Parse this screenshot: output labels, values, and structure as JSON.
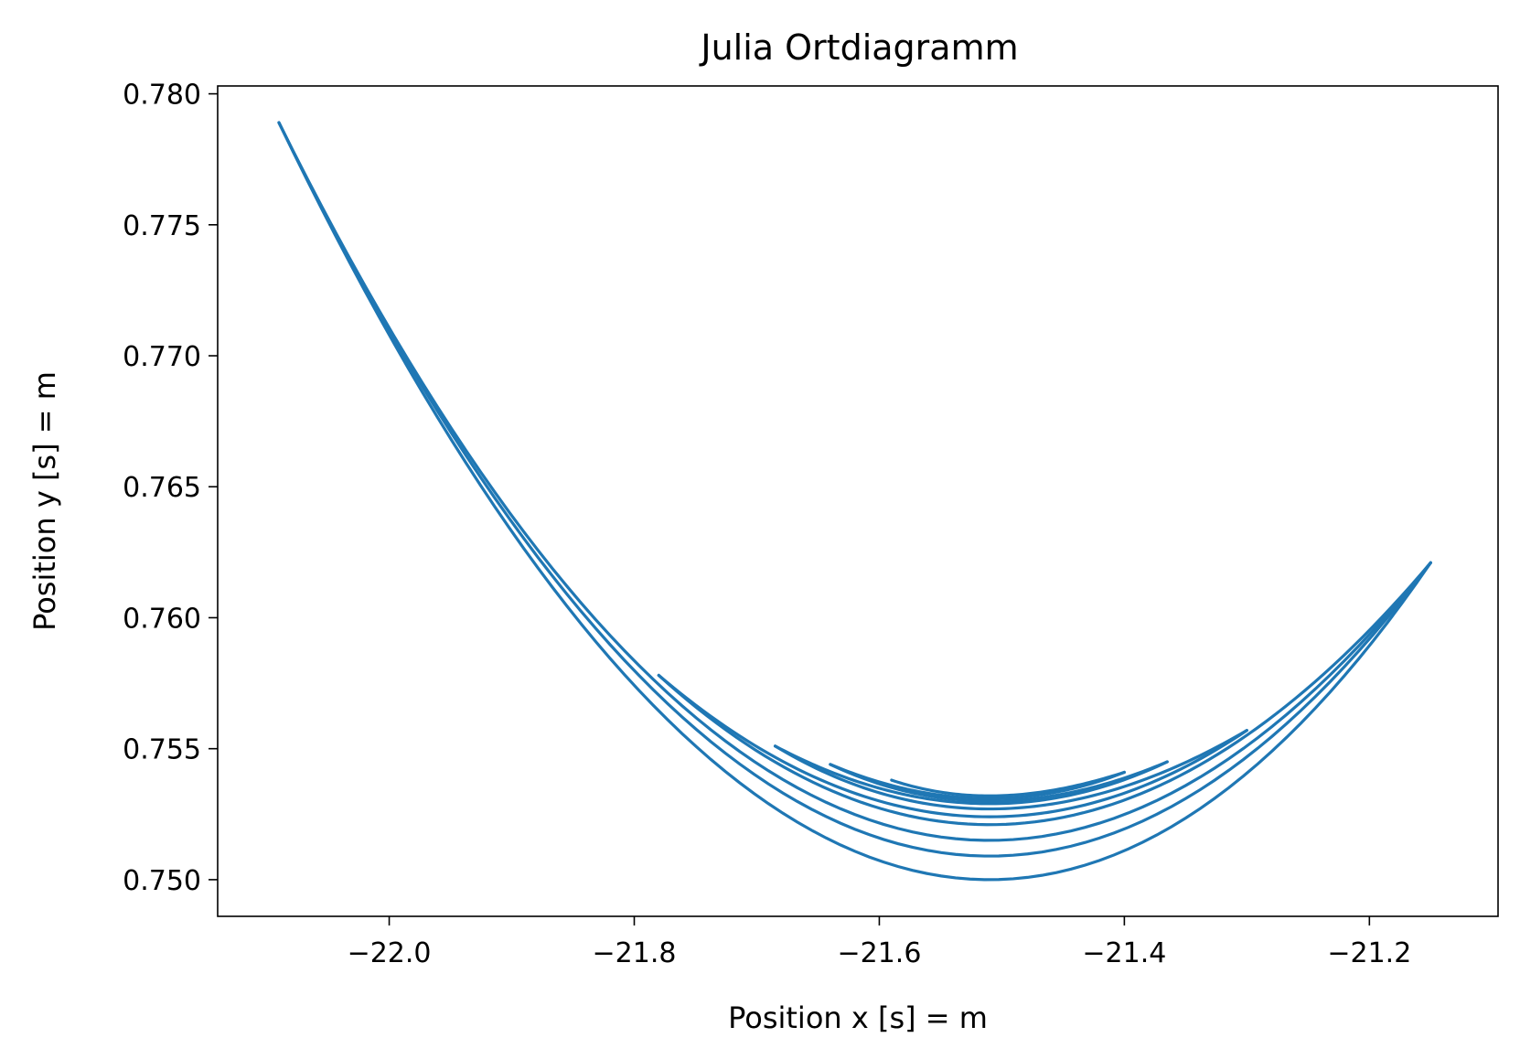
{
  "chart_data": {
    "type": "line",
    "title": "Julia Ortdiagramm",
    "xlabel": "Position x [s] = m",
    "ylabel": "Position y [s] = m",
    "xlim": [
      -22.14,
      -21.095
    ],
    "ylim": [
      0.7486,
      0.7803
    ],
    "xticks": [
      -22.0,
      -21.8,
      -21.6,
      -21.4,
      -21.2
    ],
    "xtick_labels": [
      "−22.0",
      "−21.8",
      "−21.6",
      "−21.4",
      "−21.2"
    ],
    "yticks": [
      0.75,
      0.755,
      0.76,
      0.765,
      0.77,
      0.775,
      0.78
    ],
    "ytick_labels": [
      "0.750",
      "0.755",
      "0.760",
      "0.765",
      "0.770",
      "0.775",
      "0.780"
    ],
    "grid": false,
    "legend": "none",
    "line_color": "#1f77b4",
    "x_min_curve": -21.51,
    "swings": [
      {
        "x_start": -22.09,
        "x_end": -21.15,
        "y_start": 0.7789,
        "y_end": 0.7621,
        "y_min": 0.75
      },
      {
        "x_start": -21.15,
        "x_end": -22.09,
        "y_start": 0.7621,
        "y_end": 0.7789,
        "y_min": 0.7509
      },
      {
        "x_start": -22.09,
        "x_end": -21.15,
        "y_start": 0.7789,
        "y_end": 0.7621,
        "y_min": 0.7515
      },
      {
        "x_start": -21.15,
        "x_end": -21.78,
        "y_start": 0.7621,
        "y_end": 0.7578,
        "y_min": 0.7521
      },
      {
        "x_start": -21.78,
        "x_end": -21.3,
        "y_start": 0.7578,
        "y_end": 0.7557,
        "y_min": 0.7524
      },
      {
        "x_start": -21.3,
        "x_end": -21.685,
        "y_start": 0.7557,
        "y_end": 0.7551,
        "y_min": 0.7527
      },
      {
        "x_start": -21.685,
        "x_end": -21.365,
        "y_start": 0.7551,
        "y_end": 0.7545,
        "y_min": 0.7529
      },
      {
        "x_start": -21.365,
        "x_end": -21.64,
        "y_start": 0.7545,
        "y_end": 0.7544,
        "y_min": 0.753
      },
      {
        "x_start": -21.64,
        "x_end": -21.4,
        "y_start": 0.7544,
        "y_end": 0.7541,
        "y_min": 0.7531
      },
      {
        "x_start": -21.4,
        "x_end": -21.59,
        "y_start": 0.7541,
        "y_end": 0.7538,
        "y_min": 0.7532
      }
    ]
  }
}
